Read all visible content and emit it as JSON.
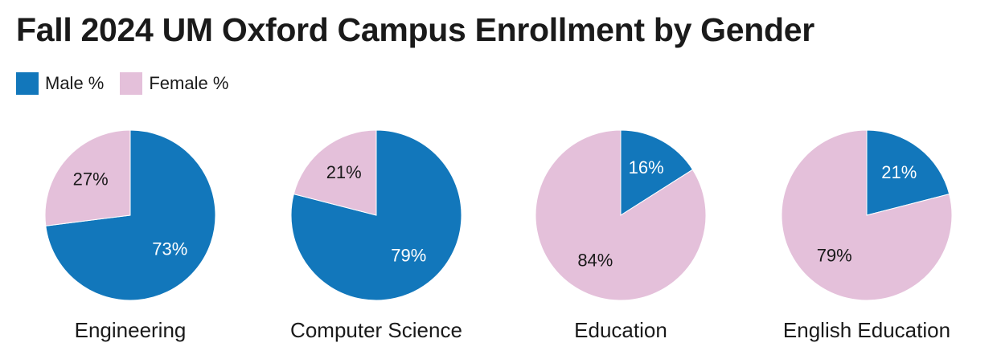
{
  "chart_data": {
    "type": "pie",
    "title": "Fall 2024 UM Oxford Campus Enrollment by Gender",
    "legend": [
      {
        "name": "Male %",
        "color": "#1277bb"
      },
      {
        "name": "Female %",
        "color": "#e4c0da"
      }
    ],
    "pies": [
      {
        "category": "Engineering",
        "male": 73,
        "female": 27,
        "male_label": "73%",
        "female_label": "27%"
      },
      {
        "category": "Computer Science",
        "male": 79,
        "female": 21,
        "male_label": "79%",
        "female_label": "21%"
      },
      {
        "category": "Education",
        "male": 16,
        "female": 84,
        "male_label": "16%",
        "female_label": "84%"
      },
      {
        "category": "English Education",
        "male": 21,
        "female": 79,
        "male_label": "21%",
        "female_label": "79%"
      }
    ]
  }
}
